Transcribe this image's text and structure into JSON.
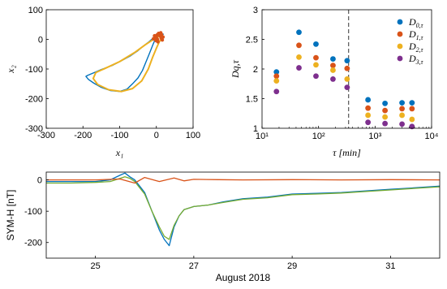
{
  "colors": {
    "blue": "#0072bd",
    "orange": "#d95319",
    "yellow": "#edb120",
    "purple": "#7e2f8e",
    "green": "#77ac30",
    "frame": "#000000",
    "dashed_line": "#555555"
  },
  "chart_data": [
    {
      "id": "phase-portrait",
      "type": "line",
      "xlabel": "x₁",
      "ylabel": "x₂",
      "xlim": [
        -300,
        100
      ],
      "ylim": [
        -300,
        100
      ],
      "xticks": [
        "-300",
        "-200",
        "-100",
        "0",
        "100"
      ],
      "yticks": [
        "-300",
        "-200",
        "-100",
        "0",
        "100"
      ],
      "grid": false,
      "series": [
        {
          "style": "noisy trajectory",
          "color": "blue",
          "x": [
            18,
            10,
            2,
            -8,
            -20,
            -35,
            -50,
            -70,
            -95,
            -120,
            -150,
            -175,
            -188,
            -192,
            -185,
            -170,
            -150,
            -125,
            -100,
            -80,
            -65,
            -50,
            -38,
            -28,
            -18,
            -10,
            -5,
            0,
            5,
            12,
            20
          ],
          "y": [
            18,
            20,
            18,
            5,
            -8,
            -22,
            -38,
            -55,
            -72,
            -88,
            -102,
            -115,
            -122,
            -125,
            -135,
            -148,
            -162,
            -173,
            -176,
            -168,
            -150,
            -130,
            -105,
            -75,
            -45,
            -20,
            -5,
            5,
            10,
            15,
            18
          ]
        },
        {
          "style": "smooth loop",
          "color": "yellow",
          "x": [
            10,
            2,
            -10,
            -30,
            -60,
            -100,
            -140,
            -165,
            -172,
            -160,
            -130,
            -95,
            -65,
            -40,
            -22,
            -10,
            0,
            8,
            15,
            12,
            10
          ],
          "y": [
            10,
            8,
            -2,
            -18,
            -45,
            -75,
            -98,
            -112,
            -132,
            -152,
            -170,
            -176,
            -166,
            -140,
            -100,
            -60,
            -30,
            -8,
            5,
            12,
            10
          ]
        },
        {
          "style": "scatter cluster",
          "color": "orange",
          "x": [
            -8,
            -3,
            2,
            6,
            10,
            13,
            16,
            4,
            -1,
            8,
            12,
            0,
            -5,
            14,
            18,
            3
          ],
          "y": [
            2,
            10,
            15,
            20,
            12,
            5,
            -2,
            -8,
            -4,
            18,
            22,
            6,
            12,
            16,
            8,
            0
          ]
        }
      ]
    },
    {
      "id": "dimension-scatter",
      "type": "scatter",
      "xscale": "log",
      "xlabel": "τ [min]",
      "ylabel": "Dq,τ",
      "xlim": [
        10,
        10000
      ],
      "ylim": [
        1,
        3
      ],
      "xtick_values": [
        10,
        100,
        1000,
        10000
      ],
      "xticks": [
        "10¹",
        "10²",
        "10³",
        "10⁴"
      ],
      "yticks": [
        "1",
        "1.5",
        "2",
        "2.5",
        "3"
      ],
      "grid": false,
      "legend_position": "top-right",
      "vline_x": 340,
      "x": [
        18,
        45,
        90,
        180,
        320,
        750,
        1500,
        3000,
        4500
      ],
      "series": [
        {
          "name": "D0,τ",
          "color": "blue",
          "values": [
            1.95,
            2.62,
            2.42,
            2.17,
            2.14,
            1.48,
            1.42,
            1.43,
            1.43
          ]
        },
        {
          "name": "D1,τ",
          "color": "orange",
          "values": [
            1.88,
            2.4,
            2.19,
            2.06,
            2.01,
            1.34,
            1.3,
            1.33,
            1.33
          ]
        },
        {
          "name": "D2,τ",
          "color": "yellow",
          "values": [
            1.8,
            2.2,
            2.07,
            1.98,
            1.83,
            1.22,
            1.19,
            1.22,
            1.15
          ]
        },
        {
          "name": "D3,τ",
          "color": "purple",
          "values": [
            1.62,
            2.02,
            1.88,
            1.83,
            1.69,
            1.1,
            1.08,
            1.07,
            1.03
          ]
        }
      ],
      "legend": [
        {
          "label_main": "D",
          "label_sub": "0,τ",
          "color": "blue"
        },
        {
          "label_main": "D",
          "label_sub": "1,τ",
          "color": "orange"
        },
        {
          "label_main": "D",
          "label_sub": "2,τ",
          "color": "yellow"
        },
        {
          "label_main": "D",
          "label_sub": "3,τ",
          "color": "purple"
        }
      ]
    },
    {
      "id": "sym-h-timeseries",
      "type": "line",
      "xlabel": "August 2018",
      "ylabel": "SYM-H [nT]",
      "xlim": [
        24,
        32
      ],
      "ylim": [
        -250,
        25
      ],
      "xtick_values": [
        25,
        27,
        29,
        31
      ],
      "xticks": [
        "25",
        "27",
        "29",
        "31"
      ],
      "yticks": [
        "0",
        "-100",
        "-200"
      ],
      "ytick_values": [
        0,
        -100,
        -200
      ],
      "grid": false,
      "series": [
        {
          "color": "blue",
          "x": [
            24.0,
            24.5,
            25.0,
            25.3,
            25.5,
            25.6,
            25.7,
            25.8,
            25.9,
            26.0,
            26.15,
            26.3,
            26.4,
            26.5,
            26.6,
            26.7,
            26.8,
            27.0,
            27.3,
            27.6,
            28.0,
            28.5,
            29.0,
            29.5,
            30.0,
            30.5,
            31.0,
            31.5,
            32.0
          ],
          "y": [
            -5,
            -5,
            -5,
            0,
            15,
            22,
            10,
            0,
            -20,
            -40,
            -100,
            -160,
            -190,
            -210,
            -150,
            -115,
            -95,
            -85,
            -80,
            -70,
            -60,
            -55,
            -45,
            -43,
            -40,
            -35,
            -30,
            -25,
            -20
          ]
        },
        {
          "color": "green",
          "x": [
            24.0,
            24.5,
            25.0,
            25.3,
            25.5,
            25.6,
            25.7,
            25.8,
            25.9,
            26.0,
            26.15,
            26.3,
            26.4,
            26.5,
            26.6,
            26.7,
            26.8,
            27.0,
            27.3,
            27.6,
            28.0,
            28.5,
            29.0,
            29.5,
            30.0,
            30.5,
            31.0,
            31.5,
            32.0
          ],
          "y": [
            -10,
            -10,
            -8,
            -5,
            5,
            10,
            5,
            -5,
            -25,
            -45,
            -100,
            -150,
            -180,
            -190,
            -145,
            -115,
            -95,
            -85,
            -80,
            -72,
            -62,
            -57,
            -47,
            -45,
            -42,
            -37,
            -32,
            -27,
            -22
          ]
        },
        {
          "color": "orange",
          "x": [
            24.0,
            24.6,
            25.0,
            25.5,
            25.8,
            26.0,
            26.3,
            26.6,
            26.8,
            27.0,
            27.5,
            28.0,
            29.0,
            30.0,
            31.0,
            32.0
          ],
          "y": [
            0,
            0,
            0,
            3,
            -10,
            8,
            -5,
            6,
            -3,
            2,
            1,
            0,
            1,
            0,
            1,
            0
          ]
        }
      ]
    }
  ]
}
